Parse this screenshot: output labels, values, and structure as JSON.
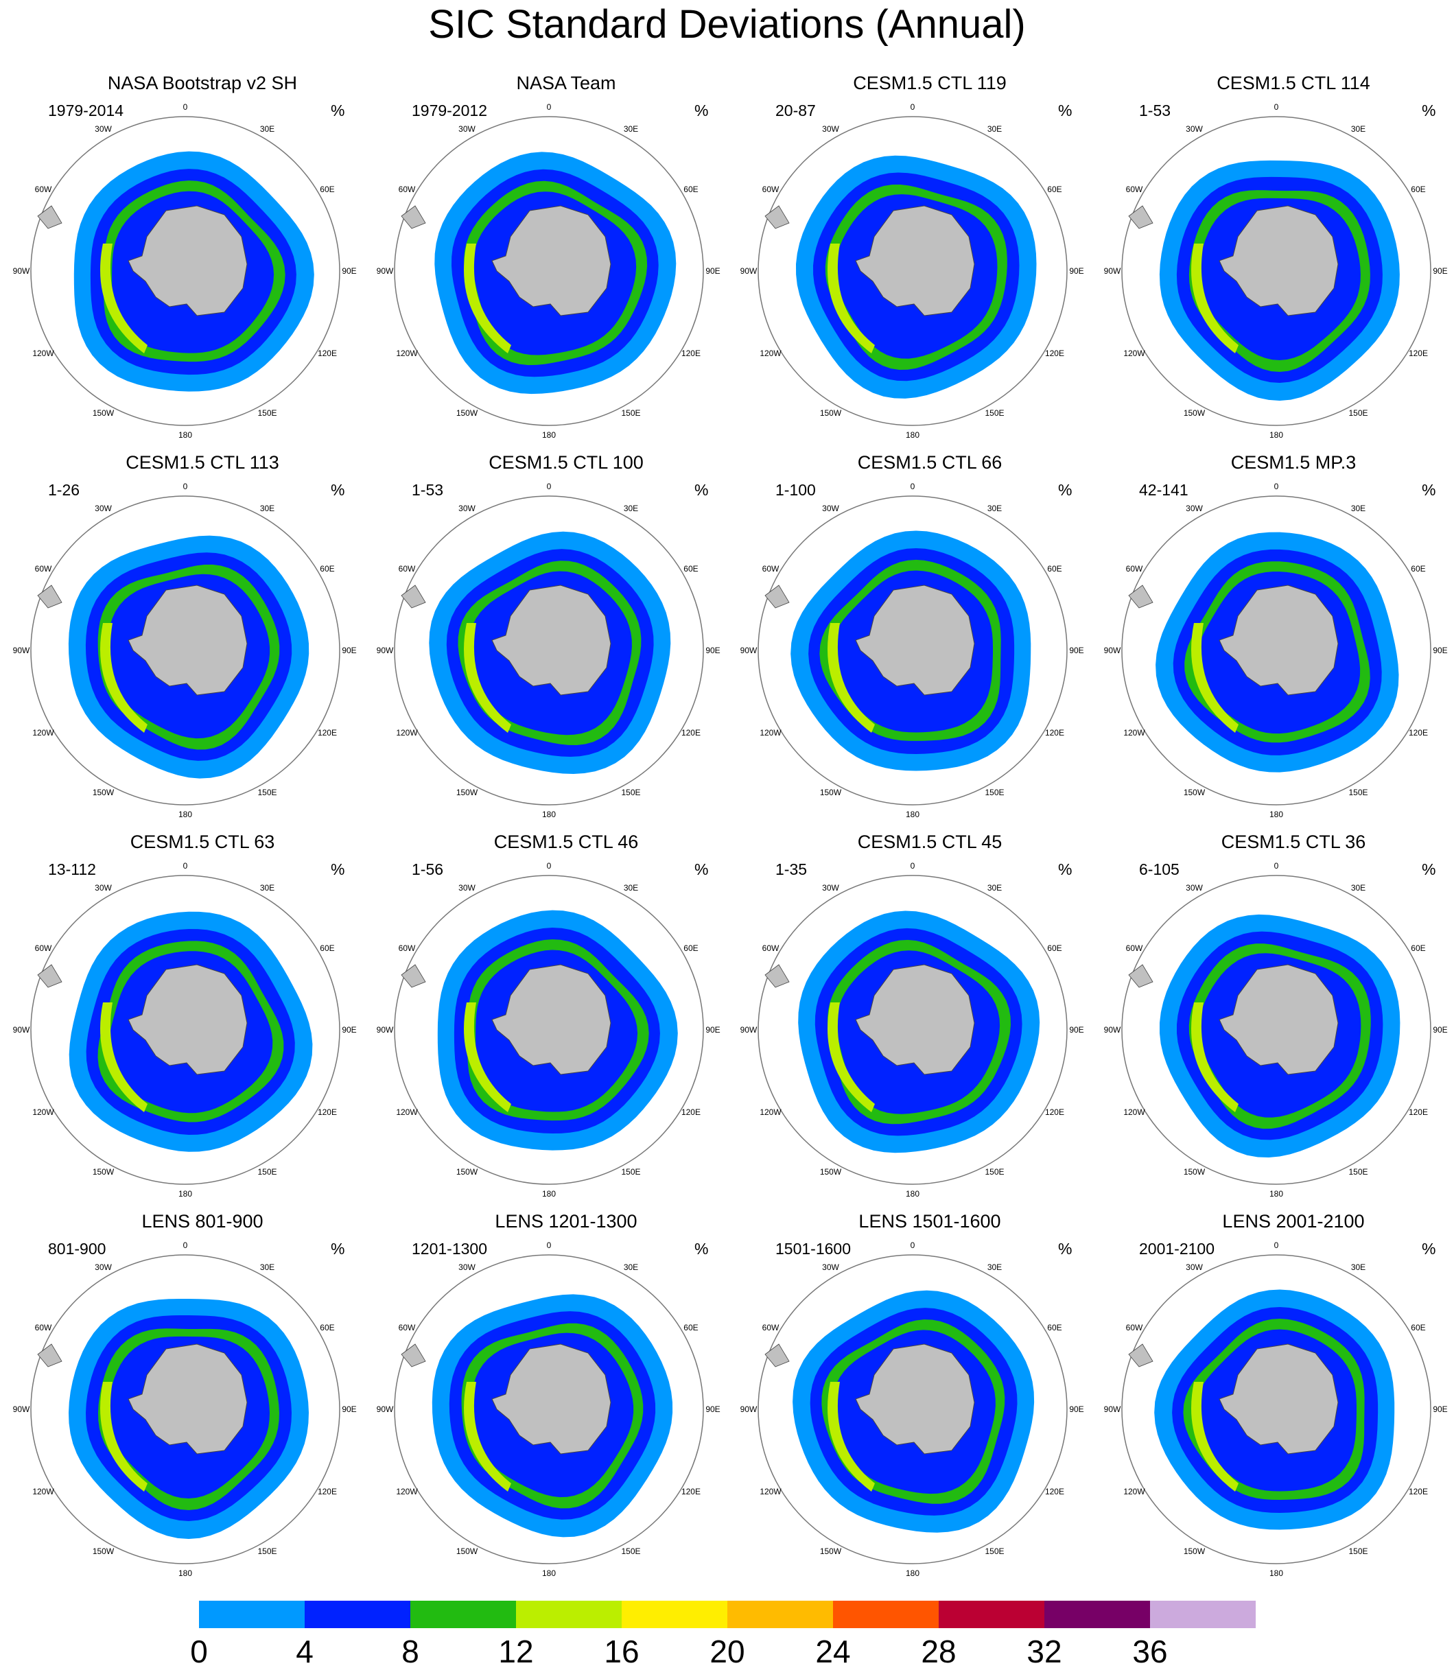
{
  "title": "SIC Standard Deviations (Annual)",
  "unit": "%",
  "longitude_labels": [
    "0",
    "30E",
    "60E",
    "90E",
    "120E",
    "150E",
    "180",
    "150W",
    "120W",
    "90W",
    "60W",
    "30W"
  ],
  "panels": [
    {
      "title": "NASA Bootstrap v2 SH",
      "period": "1979-2014"
    },
    {
      "title": "NASA Team",
      "period": "1979-2012"
    },
    {
      "title": "CESM1.5 CTL 119",
      "period": "20-87"
    },
    {
      "title": "CESM1.5 CTL 114",
      "period": "1-53"
    },
    {
      "title": "CESM1.5 CTL 113",
      "period": "1-26"
    },
    {
      "title": "CESM1.5 CTL 100",
      "period": "1-53"
    },
    {
      "title": "CESM1.5 CTL 66",
      "period": "1-100"
    },
    {
      "title": "CESM1.5 MP.3",
      "period": "42-141"
    },
    {
      "title": "CESM1.5 CTL 63",
      "period": "13-112"
    },
    {
      "title": "CESM1.5 CTL 46",
      "period": "1-56"
    },
    {
      "title": "CESM1.5 CTL 45",
      "period": "1-35"
    },
    {
      "title": "CESM1.5 CTL 36",
      "period": "6-105"
    },
    {
      "title": "LENS 801-900",
      "period": "801-900"
    },
    {
      "title": "LENS 1201-1300",
      "period": "1201-1300"
    },
    {
      "title": "LENS 1501-1600",
      "period": "1501-1600"
    },
    {
      "title": "LENS 2001-2100",
      "period": "2001-2100"
    }
  ],
  "colorbar": {
    "ticks": [
      "0",
      "4",
      "8",
      "12",
      "16",
      "20",
      "24",
      "28",
      "32",
      "36"
    ],
    "colors": [
      "#0099ff",
      "#0022ff",
      "#22bb11",
      "#bbee00",
      "#ffee00",
      "#ffbb00",
      "#ff5500",
      "#bb0033",
      "#770066",
      "#ccaadd"
    ]
  },
  "colors": {
    "land": "#c0c0c0",
    "ocean": "#ffffff",
    "circle": "#777777"
  }
}
